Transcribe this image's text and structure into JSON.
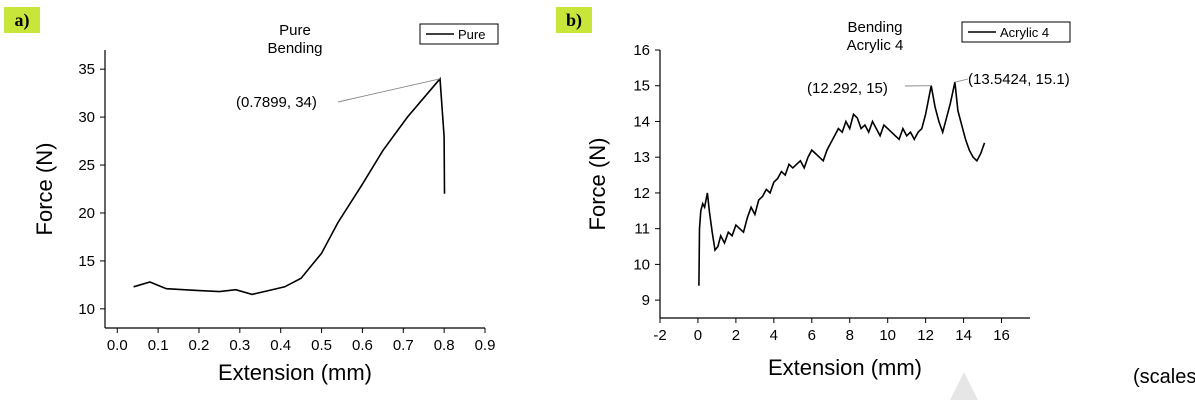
{
  "panels": [
    {
      "tag": "a)"
    },
    {
      "tag": "b)"
    }
  ],
  "scales_note": "(scales)",
  "chart_data": [
    {
      "type": "line",
      "title": [
        "Pure",
        "Bending"
      ],
      "xlabel": "Extension (mm)",
      "ylabel": "Force (N)",
      "xlim": [
        -0.03,
        0.9
      ],
      "ylim": [
        8,
        37
      ],
      "xticks": [
        0.0,
        0.1,
        0.2,
        0.3,
        0.4,
        0.5,
        0.6,
        0.7,
        0.8,
        0.9
      ],
      "xtick_labels": [
        "0.0",
        "0.1",
        "0.2",
        "0.3",
        "0.4",
        "0.5",
        "0.6",
        "0.7",
        "0.8",
        "0.9"
      ],
      "yticks": [
        10,
        15,
        20,
        25,
        30,
        35
      ],
      "ytick_labels": [
        "10",
        "15",
        "20",
        "25",
        "30",
        "35"
      ],
      "legend": {
        "position": "top-right",
        "entries": [
          "Pure"
        ]
      },
      "series": [
        {
          "name": "Pure",
          "x": [
            0.04,
            0.08,
            0.12,
            0.2,
            0.25,
            0.29,
            0.33,
            0.37,
            0.41,
            0.45,
            0.5,
            0.54,
            0.6,
            0.65,
            0.71,
            0.7899,
            0.8,
            0.801
          ],
          "y": [
            12.3,
            12.8,
            12.1,
            11.9,
            11.8,
            12.0,
            11.5,
            11.9,
            12.3,
            13.2,
            15.8,
            19.0,
            23.0,
            26.5,
            30.0,
            34.0,
            28.0,
            22.0
          ]
        }
      ],
      "annotations": [
        {
          "text": "(0.7899, 34)",
          "x": 0.7899,
          "y": 34
        }
      ]
    },
    {
      "type": "line",
      "title": [
        "Bending",
        "Acrylic 4"
      ],
      "xlabel": "Extension (mm)",
      "ylabel": "Force (N)",
      "xlim": [
        -2,
        17.5
      ],
      "ylim": [
        8.5,
        16
      ],
      "xticks": [
        -2,
        0,
        2,
        4,
        6,
        8,
        10,
        12,
        14,
        16
      ],
      "xtick_labels": [
        "-2",
        "0",
        "2",
        "4",
        "6",
        "8",
        "10",
        "12",
        "14",
        "16"
      ],
      "yticks": [
        9,
        10,
        11,
        12,
        13,
        14,
        15,
        16
      ],
      "ytick_labels": [
        "9",
        "10",
        "11",
        "12",
        "13",
        "14",
        "15",
        "16"
      ],
      "legend": {
        "position": "top-right",
        "entries": [
          "Acrylic 4"
        ]
      },
      "series": [
        {
          "name": "Acrylic 4",
          "x": [
            0.05,
            0.08,
            0.15,
            0.25,
            0.35,
            0.5,
            0.6,
            0.75,
            0.9,
            1.05,
            1.2,
            1.4,
            1.6,
            1.8,
            2.0,
            2.2,
            2.4,
            2.6,
            2.8,
            3.0,
            3.2,
            3.4,
            3.6,
            3.8,
            4.0,
            4.2,
            4.4,
            4.6,
            4.8,
            5.0,
            5.2,
            5.4,
            5.6,
            5.8,
            6.0,
            6.2,
            6.4,
            6.6,
            6.8,
            7.0,
            7.2,
            7.4,
            7.6,
            7.8,
            8.0,
            8.2,
            8.4,
            8.6,
            8.8,
            9.0,
            9.2,
            9.4,
            9.6,
            9.8,
            10.0,
            10.2,
            10.4,
            10.6,
            10.8,
            11.0,
            11.2,
            11.4,
            11.6,
            11.8,
            12.0,
            12.292,
            12.5,
            12.7,
            12.9,
            13.1,
            13.3,
            13.5424,
            13.7,
            13.9,
            14.1,
            14.3,
            14.5,
            14.7,
            14.9,
            15.1
          ],
          "y": [
            9.4,
            11.0,
            11.5,
            11.7,
            11.6,
            12.0,
            11.5,
            10.9,
            10.4,
            10.5,
            10.8,
            10.6,
            10.9,
            10.8,
            11.1,
            11.0,
            10.9,
            11.3,
            11.6,
            11.4,
            11.8,
            11.9,
            12.1,
            12.0,
            12.3,
            12.4,
            12.6,
            12.5,
            12.8,
            12.7,
            12.8,
            12.9,
            12.7,
            13.0,
            13.2,
            13.1,
            13.0,
            12.9,
            13.2,
            13.4,
            13.6,
            13.8,
            13.7,
            14.0,
            13.8,
            14.2,
            14.1,
            13.8,
            13.9,
            13.7,
            14.0,
            13.8,
            13.6,
            13.9,
            13.8,
            13.7,
            13.6,
            13.5,
            13.8,
            13.6,
            13.7,
            13.5,
            13.7,
            13.8,
            14.2,
            15.0,
            14.4,
            14.0,
            13.7,
            14.1,
            14.5,
            15.1,
            14.3,
            13.9,
            13.5,
            13.2,
            13.0,
            12.9,
            13.1,
            13.4
          ]
        }
      ],
      "annotations": [
        {
          "text": "(12.292, 15)",
          "x": 12.292,
          "y": 15
        },
        {
          "text": "(13.5424, 15.1)",
          "x": 13.5424,
          "y": 15.1
        }
      ]
    }
  ]
}
